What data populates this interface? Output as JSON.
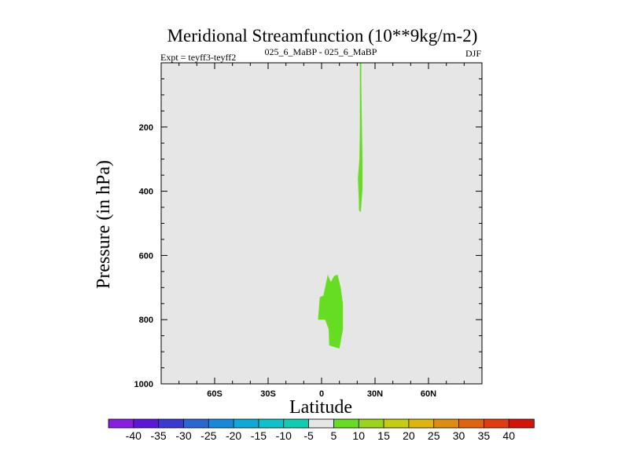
{
  "chart_data": {
    "type": "contour",
    "title": "Meridional Streamfunction (10**9kg/m-2)",
    "subtitle_left": "Expt = teyff3-teyff2",
    "subtitle_center": "025_6_MaBP - 025_6_MaBP",
    "subtitle_right": "DJF",
    "xlabel": "Latitude",
    "ylabel": "Pressure (in hPa)",
    "xlim": [
      -90,
      90
    ],
    "ylim": [
      1000,
      0
    ],
    "x_ticks": [
      {
        "value": -60,
        "label": "60S"
      },
      {
        "value": -30,
        "label": "30S"
      },
      {
        "value": 0,
        "label": "0"
      },
      {
        "value": 30,
        "label": "30N"
      },
      {
        "value": 60,
        "label": "60N"
      }
    ],
    "y_ticks": [
      {
        "value": 200,
        "label": "200"
      },
      {
        "value": 400,
        "label": "400"
      },
      {
        "value": 600,
        "label": "600"
      },
      {
        "value": 800,
        "label": "800"
      },
      {
        "value": 1000,
        "label": "1000"
      }
    ],
    "background_level": "-5 to 5",
    "background_color": "#e6e6e6",
    "regions": [
      {
        "name": "upper-cell",
        "level": "5 to 10",
        "color": "#66dd22",
        "polygon": [
          [
            21.5,
            0
          ],
          [
            22.3,
            0
          ],
          [
            22.3,
            60
          ],
          [
            22.5,
            150
          ],
          [
            22.8,
            250
          ],
          [
            23,
            330
          ],
          [
            23,
            390
          ],
          [
            22.3,
            445
          ],
          [
            22,
            465
          ],
          [
            21,
            460
          ],
          [
            20.9,
            430
          ],
          [
            20.4,
            360
          ],
          [
            21.2,
            300
          ],
          [
            21.5,
            200
          ],
          [
            21.5,
            100
          ]
        ]
      },
      {
        "name": "lower-cell",
        "level": "5 to 10",
        "color": "#66dd22",
        "polygon": [
          [
            3.5,
            660
          ],
          [
            5.2,
            683
          ],
          [
            7,
            664
          ],
          [
            9,
            660
          ],
          [
            10.7,
            700
          ],
          [
            12,
            750
          ],
          [
            12,
            830
          ],
          [
            10,
            890
          ],
          [
            7,
            885
          ],
          [
            4.3,
            880
          ],
          [
            4,
            830
          ],
          [
            2,
            800
          ],
          [
            -2,
            800
          ],
          [
            -1,
            730
          ],
          [
            1,
            725
          ]
        ]
      }
    ],
    "colorbar": {
      "labels": [
        "-40",
        "-35",
        "-30",
        "-25",
        "-20",
        "-15",
        "-10",
        "-5",
        "5",
        "10",
        "15",
        "20",
        "25",
        "30",
        "35",
        "40"
      ],
      "colors": [
        "#8a1ee0",
        "#5b16d8",
        "#3a3ad0",
        "#2a66d0",
        "#1a88d8",
        "#10a8d8",
        "#10c0cc",
        "#10ccb0",
        "#e6e6e6",
        "#66dd22",
        "#9ad41c",
        "#c4cc14",
        "#e0b410",
        "#e08c10",
        "#e06410",
        "#e03c10",
        "#d41408"
      ]
    }
  }
}
